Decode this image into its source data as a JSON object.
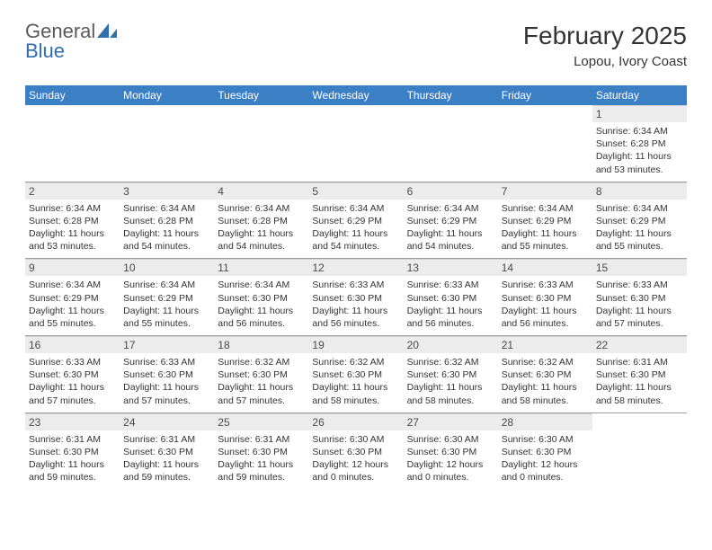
{
  "brand": {
    "word1": "General",
    "word2": "Blue",
    "logo_color": "#2f6fae"
  },
  "title": "February 2025",
  "location": "Lopou, Ivory Coast",
  "colors": {
    "header_bar": "#3b7fc4",
    "header_text": "#ffffff",
    "daynum_bg": "#ececec",
    "body_text": "#333333",
    "divider": "#9aa0a6"
  },
  "fontsizes": {
    "title": 28,
    "subtitle": 15,
    "dow": 12,
    "daynum": 12,
    "info": 10.5
  },
  "days_of_week": [
    "Sunday",
    "Monday",
    "Tuesday",
    "Wednesday",
    "Thursday",
    "Friday",
    "Saturday"
  ],
  "weeks": [
    [
      {
        "n": "",
        "sunrise": "",
        "sunset": "",
        "daylight": ""
      },
      {
        "n": "",
        "sunrise": "",
        "sunset": "",
        "daylight": ""
      },
      {
        "n": "",
        "sunrise": "",
        "sunset": "",
        "daylight": ""
      },
      {
        "n": "",
        "sunrise": "",
        "sunset": "",
        "daylight": ""
      },
      {
        "n": "",
        "sunrise": "",
        "sunset": "",
        "daylight": ""
      },
      {
        "n": "",
        "sunrise": "",
        "sunset": "",
        "daylight": ""
      },
      {
        "n": "1",
        "sunrise": "Sunrise: 6:34 AM",
        "sunset": "Sunset: 6:28 PM",
        "daylight": "Daylight: 11 hours and 53 minutes."
      }
    ],
    [
      {
        "n": "2",
        "sunrise": "Sunrise: 6:34 AM",
        "sunset": "Sunset: 6:28 PM",
        "daylight": "Daylight: 11 hours and 53 minutes."
      },
      {
        "n": "3",
        "sunrise": "Sunrise: 6:34 AM",
        "sunset": "Sunset: 6:28 PM",
        "daylight": "Daylight: 11 hours and 54 minutes."
      },
      {
        "n": "4",
        "sunrise": "Sunrise: 6:34 AM",
        "sunset": "Sunset: 6:28 PM",
        "daylight": "Daylight: 11 hours and 54 minutes."
      },
      {
        "n": "5",
        "sunrise": "Sunrise: 6:34 AM",
        "sunset": "Sunset: 6:29 PM",
        "daylight": "Daylight: 11 hours and 54 minutes."
      },
      {
        "n": "6",
        "sunrise": "Sunrise: 6:34 AM",
        "sunset": "Sunset: 6:29 PM",
        "daylight": "Daylight: 11 hours and 54 minutes."
      },
      {
        "n": "7",
        "sunrise": "Sunrise: 6:34 AM",
        "sunset": "Sunset: 6:29 PM",
        "daylight": "Daylight: 11 hours and 55 minutes."
      },
      {
        "n": "8",
        "sunrise": "Sunrise: 6:34 AM",
        "sunset": "Sunset: 6:29 PM",
        "daylight": "Daylight: 11 hours and 55 minutes."
      }
    ],
    [
      {
        "n": "9",
        "sunrise": "Sunrise: 6:34 AM",
        "sunset": "Sunset: 6:29 PM",
        "daylight": "Daylight: 11 hours and 55 minutes."
      },
      {
        "n": "10",
        "sunrise": "Sunrise: 6:34 AM",
        "sunset": "Sunset: 6:29 PM",
        "daylight": "Daylight: 11 hours and 55 minutes."
      },
      {
        "n": "11",
        "sunrise": "Sunrise: 6:34 AM",
        "sunset": "Sunset: 6:30 PM",
        "daylight": "Daylight: 11 hours and 56 minutes."
      },
      {
        "n": "12",
        "sunrise": "Sunrise: 6:33 AM",
        "sunset": "Sunset: 6:30 PM",
        "daylight": "Daylight: 11 hours and 56 minutes."
      },
      {
        "n": "13",
        "sunrise": "Sunrise: 6:33 AM",
        "sunset": "Sunset: 6:30 PM",
        "daylight": "Daylight: 11 hours and 56 minutes."
      },
      {
        "n": "14",
        "sunrise": "Sunrise: 6:33 AM",
        "sunset": "Sunset: 6:30 PM",
        "daylight": "Daylight: 11 hours and 56 minutes."
      },
      {
        "n": "15",
        "sunrise": "Sunrise: 6:33 AM",
        "sunset": "Sunset: 6:30 PM",
        "daylight": "Daylight: 11 hours and 57 minutes."
      }
    ],
    [
      {
        "n": "16",
        "sunrise": "Sunrise: 6:33 AM",
        "sunset": "Sunset: 6:30 PM",
        "daylight": "Daylight: 11 hours and 57 minutes."
      },
      {
        "n": "17",
        "sunrise": "Sunrise: 6:33 AM",
        "sunset": "Sunset: 6:30 PM",
        "daylight": "Daylight: 11 hours and 57 minutes."
      },
      {
        "n": "18",
        "sunrise": "Sunrise: 6:32 AM",
        "sunset": "Sunset: 6:30 PM",
        "daylight": "Daylight: 11 hours and 57 minutes."
      },
      {
        "n": "19",
        "sunrise": "Sunrise: 6:32 AM",
        "sunset": "Sunset: 6:30 PM",
        "daylight": "Daylight: 11 hours and 58 minutes."
      },
      {
        "n": "20",
        "sunrise": "Sunrise: 6:32 AM",
        "sunset": "Sunset: 6:30 PM",
        "daylight": "Daylight: 11 hours and 58 minutes."
      },
      {
        "n": "21",
        "sunrise": "Sunrise: 6:32 AM",
        "sunset": "Sunset: 6:30 PM",
        "daylight": "Daylight: 11 hours and 58 minutes."
      },
      {
        "n": "22",
        "sunrise": "Sunrise: 6:31 AM",
        "sunset": "Sunset: 6:30 PM",
        "daylight": "Daylight: 11 hours and 58 minutes."
      }
    ],
    [
      {
        "n": "23",
        "sunrise": "Sunrise: 6:31 AM",
        "sunset": "Sunset: 6:30 PM",
        "daylight": "Daylight: 11 hours and 59 minutes."
      },
      {
        "n": "24",
        "sunrise": "Sunrise: 6:31 AM",
        "sunset": "Sunset: 6:30 PM",
        "daylight": "Daylight: 11 hours and 59 minutes."
      },
      {
        "n": "25",
        "sunrise": "Sunrise: 6:31 AM",
        "sunset": "Sunset: 6:30 PM",
        "daylight": "Daylight: 11 hours and 59 minutes."
      },
      {
        "n": "26",
        "sunrise": "Sunrise: 6:30 AM",
        "sunset": "Sunset: 6:30 PM",
        "daylight": "Daylight: 12 hours and 0 minutes."
      },
      {
        "n": "27",
        "sunrise": "Sunrise: 6:30 AM",
        "sunset": "Sunset: 6:30 PM",
        "daylight": "Daylight: 12 hours and 0 minutes."
      },
      {
        "n": "28",
        "sunrise": "Sunrise: 6:30 AM",
        "sunset": "Sunset: 6:30 PM",
        "daylight": "Daylight: 12 hours and 0 minutes."
      },
      {
        "n": "",
        "sunrise": "",
        "sunset": "",
        "daylight": ""
      }
    ]
  ]
}
